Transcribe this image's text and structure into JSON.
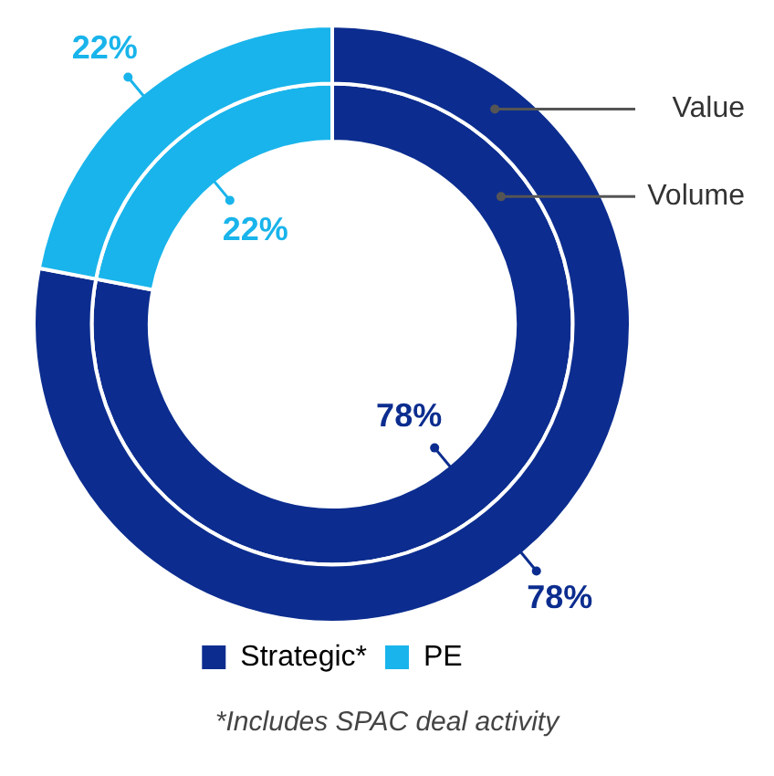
{
  "chart_data": {
    "type": "donut",
    "categories": [
      "Strategic*",
      "PE"
    ],
    "colors": [
      "#0c2d8f",
      "#19b4eb"
    ],
    "series": [
      {
        "name": "Value",
        "values": [
          78,
          22
        ],
        "value_labels": [
          "78%",
          "22%"
        ]
      },
      {
        "name": "Volume",
        "values": [
          78,
          22
        ],
        "value_labels": [
          "78%",
          "22%"
        ]
      }
    ],
    "legend": "bottom",
    "annotations": [
      "*Includes SPAC deal activity"
    ]
  }
}
